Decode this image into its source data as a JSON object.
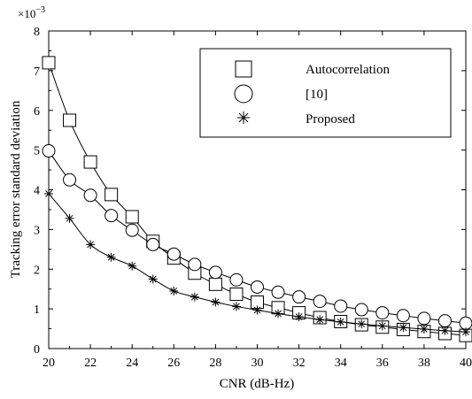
{
  "chart_data": {
    "type": "line",
    "xlabel": "CNR (dB-Hz)",
    "ylabel": "Tracking error standard deviation",
    "y_multiplier": "×10",
    "y_multiplier_exp": "−3",
    "xlim": [
      20,
      40
    ],
    "ylim": [
      0,
      8
    ],
    "xticks": [
      20,
      22,
      24,
      26,
      28,
      30,
      32,
      34,
      36,
      38,
      40
    ],
    "yticks": [
      0,
      1,
      2,
      3,
      4,
      5,
      6,
      7,
      8
    ],
    "grid": false,
    "legend_position": "top-right",
    "x": [
      20,
      21,
      22,
      23,
      24,
      25,
      26,
      27,
      28,
      29,
      30,
      31,
      32,
      33,
      34,
      35,
      36,
      37,
      38,
      39,
      40
    ],
    "series": [
      {
        "name": "Autocorrelation",
        "marker": "square",
        "values": [
          7.2,
          5.75,
          4.7,
          3.88,
          3.32,
          2.7,
          2.28,
          1.9,
          1.62,
          1.37,
          1.17,
          1.03,
          0.9,
          0.78,
          0.68,
          0.6,
          0.54,
          0.48,
          0.43,
          0.38,
          0.33
        ]
      },
      {
        "name": "[10]",
        "marker": "circle",
        "values": [
          4.98,
          4.25,
          3.86,
          3.35,
          2.98,
          2.62,
          2.38,
          2.12,
          1.92,
          1.73,
          1.55,
          1.42,
          1.3,
          1.19,
          1.07,
          0.98,
          0.9,
          0.83,
          0.76,
          0.7,
          0.64
        ]
      },
      {
        "name": "Proposed",
        "marker": "asterisk",
        "values": [
          3.9,
          3.28,
          2.62,
          2.3,
          2.08,
          1.75,
          1.45,
          1.3,
          1.17,
          1.06,
          0.97,
          0.88,
          0.8,
          0.73,
          0.67,
          0.62,
          0.57,
          0.53,
          0.49,
          0.45,
          0.42
        ]
      }
    ]
  }
}
